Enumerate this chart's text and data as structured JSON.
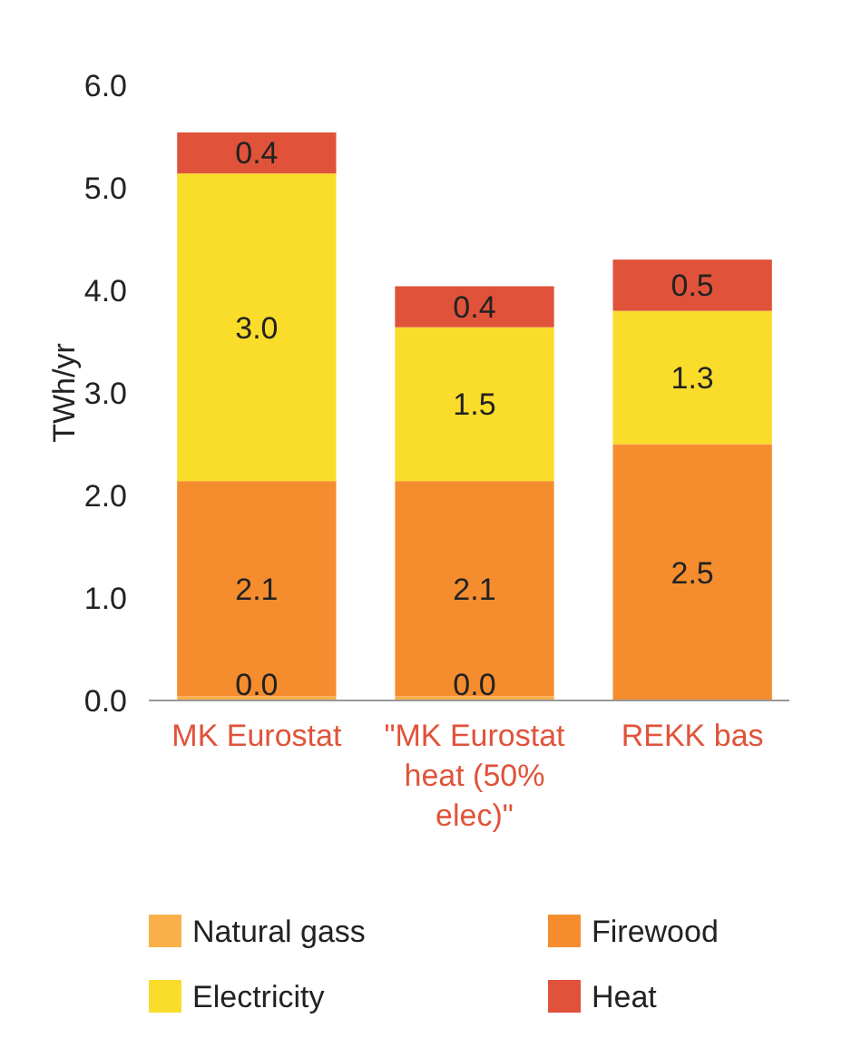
{
  "chart_data": {
    "type": "bar",
    "stacked": true,
    "ylabel": "TWh/yr",
    "categories": [
      "MK Eurostat",
      "\"MK Eurostat heat (50% elec)\"",
      "REKK bas"
    ],
    "series": [
      {
        "name": "Natural gass",
        "color": "#f9b04a",
        "values": [
          0.04,
          0.04,
          0
        ],
        "value_labels": [
          "0.0",
          "0.0",
          null
        ]
      },
      {
        "name": "Firewood",
        "color": "#f58d2e",
        "values": [
          2.1,
          2.1,
          2.5
        ],
        "value_labels": [
          "2.1",
          "2.1",
          "2.5"
        ]
      },
      {
        "name": "Electricity",
        "color": "#fadc2a",
        "values": [
          3.0,
          1.5,
          1.3
        ],
        "value_labels": [
          "3.0",
          "1.5",
          "1.3"
        ]
      },
      {
        "name": "Heat",
        "color": "#e0533a",
        "values": [
          0.4,
          0.4,
          0.5
        ],
        "value_labels": [
          "0.4",
          "0.4",
          "0.5"
        ]
      }
    ],
    "ylim": [
      0,
      6
    ],
    "yticks": [
      {
        "value": 0,
        "label": "0.0"
      },
      {
        "value": 1,
        "label": "1.0"
      },
      {
        "value": 2,
        "label": "2.0"
      },
      {
        "value": 3,
        "label": "3.0"
      },
      {
        "value": 4,
        "label": "4.0"
      },
      {
        "value": 5,
        "label": "5.0"
      },
      {
        "value": 6,
        "label": "6.0"
      }
    ],
    "grid": false,
    "legend": "bottom"
  }
}
